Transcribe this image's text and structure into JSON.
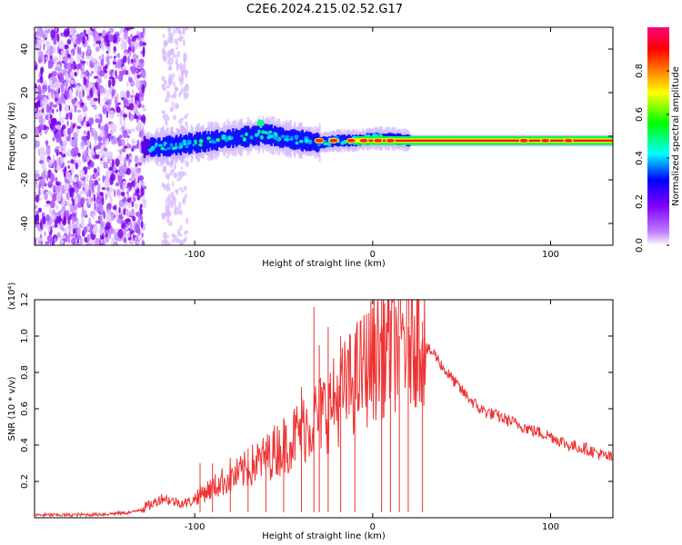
{
  "title": "C2E6.2024.215.02.52.G17",
  "chart_data": [
    {
      "type": "heatmap",
      "xlabel": "Height of straight line (km)",
      "ylabel": "Frequency (Hz)",
      "xlim": [
        -190,
        135
      ],
      "ylim": [
        -50,
        50
      ],
      "xticks": [
        -100,
        0,
        100
      ],
      "xtick_labels": [
        "-100",
        "0",
        "100"
      ],
      "yticks": [
        -40,
        -20,
        0,
        20,
        40
      ],
      "ytick_labels": [
        "-40",
        "-20",
        "0",
        "20",
        "40"
      ],
      "colorbar": {
        "label": "Normalized spectral amplitude",
        "range": [
          0,
          1
        ],
        "ticks": [
          0.0,
          0.2,
          0.4,
          0.6,
          0.8
        ],
        "tick_labels": [
          "0.0",
          "0.2",
          "0.4",
          "0.6",
          "0.8"
        ],
        "colors": [
          "#ffffff",
          "#8000ff",
          "#0000ff",
          "#00ffff",
          "#00ff00",
          "#ffff00",
          "#ff8000",
          "#ff0000",
          "#ff0080"
        ]
      },
      "ridge_line": {
        "x": [
          -130,
          -120,
          -110,
          -100,
          -90,
          -80,
          -70,
          -60,
          -50,
          -40,
          -30,
          -20,
          -10,
          0,
          10,
          20,
          40,
          60,
          80,
          100,
          120,
          135
        ],
        "y": [
          -5,
          -5,
          -4,
          -3,
          -2,
          -1,
          0,
          1,
          -1,
          -2,
          -3,
          -2,
          -2,
          -1,
          -1,
          -2,
          -2,
          -2,
          -2,
          -2,
          -2,
          -2
        ]
      }
    },
    {
      "type": "line",
      "xlabel": "Height of straight line (km)",
      "ylabel": "SNR (10 * v/v)",
      "y_multiplier": "(x10⁴)",
      "xlim": [
        -190,
        135
      ],
      "ylim": [
        0,
        1.2
      ],
      "xticks": [
        -100,
        0,
        100
      ],
      "xtick_labels": [
        "-100",
        "0",
        "100"
      ],
      "yticks": [
        0.2,
        0.4,
        0.6,
        0.8,
        1.0,
        1.2
      ],
      "ytick_labels": [
        "0.2",
        "0.4",
        "0.6",
        "0.8",
        "1.0",
        "1.2"
      ],
      "color": "#ee3333",
      "series": [
        {
          "x": [
            -190,
            -170,
            -150,
            -135,
            -125,
            -118,
            -112,
            -105,
            -100,
            -95,
            -90,
            -85,
            -80,
            -75,
            -70,
            -65,
            -60,
            -55,
            -50,
            -45,
            -40,
            -35,
            -30,
            -25,
            -20,
            -15,
            -10,
            -5,
            0,
            5,
            10,
            15,
            20,
            25,
            30,
            35,
            40,
            50,
            60,
            70,
            80,
            90,
            100,
            110,
            120,
            130,
            135
          ],
          "y": [
            0.015,
            0.015,
            0.02,
            0.03,
            0.07,
            0.11,
            0.09,
            0.08,
            0.1,
            0.13,
            0.15,
            0.18,
            0.2,
            0.22,
            0.25,
            0.28,
            0.3,
            0.34,
            0.36,
            0.4,
            0.45,
            0.48,
            0.52,
            0.55,
            0.6,
            0.65,
            0.7,
            0.75,
            0.8,
            0.85,
            0.88,
            0.9,
            0.92,
            0.95,
            0.93,
            0.9,
            0.82,
            0.7,
            0.6,
            0.56,
            0.52,
            0.48,
            0.45,
            0.4,
            0.38,
            0.34,
            0.33
          ]
        }
      ],
      "spikes": [
        {
          "x": -97,
          "y": 0.3
        },
        {
          "x": -90,
          "y": 0.3
        },
        {
          "x": -80,
          "y": 0.33
        },
        {
          "x": -70,
          "y": 0.38
        },
        {
          "x": -60,
          "y": 0.42
        },
        {
          "x": -50,
          "y": 0.55
        },
        {
          "x": -40,
          "y": 0.72
        },
        {
          "x": -33,
          "y": 1.16
        },
        {
          "x": -30,
          "y": 0.95
        },
        {
          "x": -25,
          "y": 1.05
        },
        {
          "x": -18,
          "y": 1.0
        },
        {
          "x": -10,
          "y": 0.95
        },
        {
          "x": 5,
          "y": 1.2
        },
        {
          "x": 10,
          "y": 1.14
        },
        {
          "x": 15,
          "y": 1.0
        },
        {
          "x": 20,
          "y": 1.05
        },
        {
          "x": 28,
          "y": 1.08
        }
      ]
    }
  ]
}
